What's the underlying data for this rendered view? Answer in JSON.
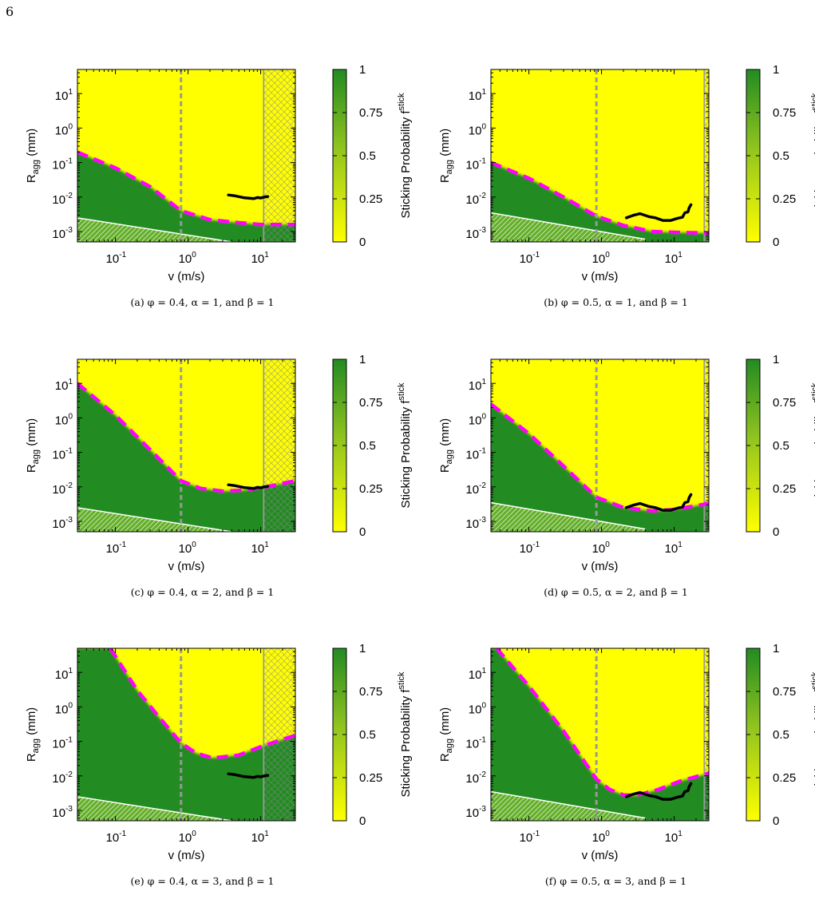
{
  "page_number": "6",
  "colors": {
    "stick_high": "#228b22",
    "stick_low": "#ffff00",
    "threshold_line": "#ff00ff",
    "dashed_ref": "#999999",
    "trajectory": "#000000",
    "limit_line": "#ffffff"
  },
  "colorbar": {
    "label": "Sticking Probability",
    "label_symbol": "f",
    "label_subscript": "stick",
    "ticks": [
      "1",
      "0.75",
      "0.5",
      "0.25",
      "0"
    ],
    "tick_values": [
      1,
      0.75,
      0.5,
      0.25,
      0
    ]
  },
  "axes": {
    "xlabel": "v (m/s)",
    "ylabel_symbol": "R",
    "ylabel_subscript": "agg",
    "ylabel_unit": "(mm)",
    "xscale": "log",
    "yscale": "log",
    "xlim": [
      0.03,
      30
    ],
    "ylim": [
      0.0005,
      50
    ],
    "x_ticks": [
      {
        "value": 0.1,
        "base": "10",
        "exp": "-1"
      },
      {
        "value": 1,
        "base": "10",
        "exp": "0"
      },
      {
        "value": 10,
        "base": "10",
        "exp": "1"
      }
    ],
    "y_ticks": [
      {
        "value": 0.001,
        "base": "10",
        "exp": "-3"
      },
      {
        "value": 0.01,
        "base": "10",
        "exp": "-2"
      },
      {
        "value": 0.1,
        "base": "10",
        "exp": "-1"
      },
      {
        "value": 1,
        "base": "10",
        "exp": "0"
      },
      {
        "value": 10,
        "base": "10",
        "exp": "1"
      }
    ]
  },
  "chart_data": [
    {
      "type": "heatmap",
      "caption": "(a) φ = 0.4, α = 1, and β = 1",
      "dashed_vline_x": 0.8,
      "hatched_region_x_start": 11,
      "threshold_curve": {
        "x": [
          0.03,
          0.1,
          0.3,
          0.8,
          2,
          5,
          10,
          30
        ],
        "y": [
          0.2,
          0.07,
          0.02,
          0.004,
          0.0022,
          0.0018,
          0.0016,
          0.0016
        ]
      },
      "white_line": {
        "x": [
          0.03,
          4
        ],
        "y": [
          0.0025,
          0.0005
        ]
      },
      "trajectory": {
        "x": [
          3.6,
          4.5,
          6,
          8,
          9,
          10,
          11,
          12.5
        ],
        "y": [
          0.0115,
          0.0108,
          0.0095,
          0.009,
          0.0097,
          0.0094,
          0.0099,
          0.0104
        ]
      }
    },
    {
      "type": "heatmap",
      "caption": "(b) φ = 0.5, α = 1, and β = 1",
      "dashed_vline_x": 0.85,
      "hatched_region_x_start": 26,
      "threshold_curve": {
        "x": [
          0.03,
          0.1,
          0.3,
          0.85,
          2,
          5,
          10,
          30
        ],
        "y": [
          0.1,
          0.035,
          0.01,
          0.0028,
          0.0015,
          0.001,
          0.00095,
          0.0009
        ]
      },
      "white_line": {
        "x": [
          0.03,
          4
        ],
        "y": [
          0.0035,
          0.0006
        ]
      },
      "trajectory": {
        "x": [
          2.2,
          2.8,
          3.4,
          4.5,
          5.5,
          7,
          9,
          11,
          13,
          14,
          15.5,
          16,
          17
        ],
        "y": [
          0.0025,
          0.003,
          0.0033,
          0.0027,
          0.0025,
          0.0021,
          0.0021,
          0.0024,
          0.0026,
          0.0035,
          0.0037,
          0.0048,
          0.006
        ]
      }
    },
    {
      "type": "heatmap",
      "caption": "(c) φ = 0.4, α = 2, and β = 1",
      "dashed_vline_x": 0.8,
      "hatched_region_x_start": 11,
      "threshold_curve": {
        "x": [
          0.03,
          0.1,
          0.3,
          0.8,
          1.5,
          3,
          6,
          12,
          30
        ],
        "y": [
          10,
          1.2,
          0.12,
          0.015,
          0.009,
          0.0075,
          0.008,
          0.01,
          0.015
        ]
      },
      "white_line": {
        "x": [
          0.03,
          4
        ],
        "y": [
          0.0025,
          0.0005
        ]
      },
      "trajectory": {
        "x": [
          3.6,
          4.5,
          6,
          8,
          9,
          10,
          11,
          12.5
        ],
        "y": [
          0.0115,
          0.0108,
          0.0095,
          0.009,
          0.0097,
          0.0094,
          0.0099,
          0.0104
        ]
      }
    },
    {
      "type": "heatmap",
      "caption": "(d) φ = 0.5, α = 2, and β = 1",
      "dashed_vline_x": 0.85,
      "hatched_region_x_start": 26,
      "threshold_curve": {
        "x": [
          0.03,
          0.1,
          0.3,
          0.85,
          2,
          5,
          10,
          30
        ],
        "y": [
          2.5,
          0.35,
          0.04,
          0.005,
          0.0025,
          0.002,
          0.0022,
          0.0033
        ]
      },
      "white_line": {
        "x": [
          0.03,
          4
        ],
        "y": [
          0.0035,
          0.0006
        ]
      },
      "trajectory": {
        "x": [
          2.2,
          2.8,
          3.4,
          4.5,
          5.5,
          7,
          9,
          11,
          13,
          14,
          15.5,
          16,
          17
        ],
        "y": [
          0.0025,
          0.003,
          0.0033,
          0.0027,
          0.0025,
          0.0021,
          0.0021,
          0.0024,
          0.0026,
          0.0035,
          0.0037,
          0.0048,
          0.006
        ]
      }
    },
    {
      "type": "heatmap",
      "caption": "(e) φ = 0.4, α = 3, and β = 1",
      "dashed_vline_x": 0.8,
      "hatched_region_x_start": 11,
      "threshold_curve": {
        "x": [
          0.085,
          0.2,
          0.4,
          0.8,
          1.3,
          2.2,
          5,
          10,
          30
        ],
        "y": [
          50,
          3,
          0.5,
          0.09,
          0.045,
          0.033,
          0.04,
          0.07,
          0.15
        ]
      },
      "white_line": {
        "x": [
          0.03,
          4
        ],
        "y": [
          0.0025,
          0.0005
        ]
      },
      "trajectory": {
        "x": [
          3.6,
          4.5,
          6,
          8,
          9,
          10,
          11,
          12.5
        ],
        "y": [
          0.0115,
          0.0108,
          0.0095,
          0.009,
          0.0097,
          0.0094,
          0.0099,
          0.0104
        ]
      }
    },
    {
      "type": "heatmap",
      "caption": "(f) φ = 0.5, α = 3, and β = 1",
      "dashed_vline_x": 0.85,
      "hatched_region_x_start": 26,
      "threshold_curve": {
        "x": [
          0.036,
          0.1,
          0.3,
          0.85,
          1.3,
          2,
          3,
          6,
          12,
          30
        ],
        "y": [
          50,
          4,
          0.2,
          0.008,
          0.004,
          0.0028,
          0.0027,
          0.004,
          0.007,
          0.012
        ]
      },
      "white_line": {
        "x": [
          0.03,
          4
        ],
        "y": [
          0.0035,
          0.0006
        ]
      },
      "trajectory": {
        "x": [
          2.2,
          2.8,
          3.4,
          4.5,
          5.5,
          7,
          9,
          11,
          13,
          14,
          15.5,
          16,
          17
        ],
        "y": [
          0.0025,
          0.003,
          0.0033,
          0.0027,
          0.0025,
          0.0021,
          0.0021,
          0.0024,
          0.0026,
          0.0035,
          0.0037,
          0.0048,
          0.006
        ]
      }
    }
  ]
}
